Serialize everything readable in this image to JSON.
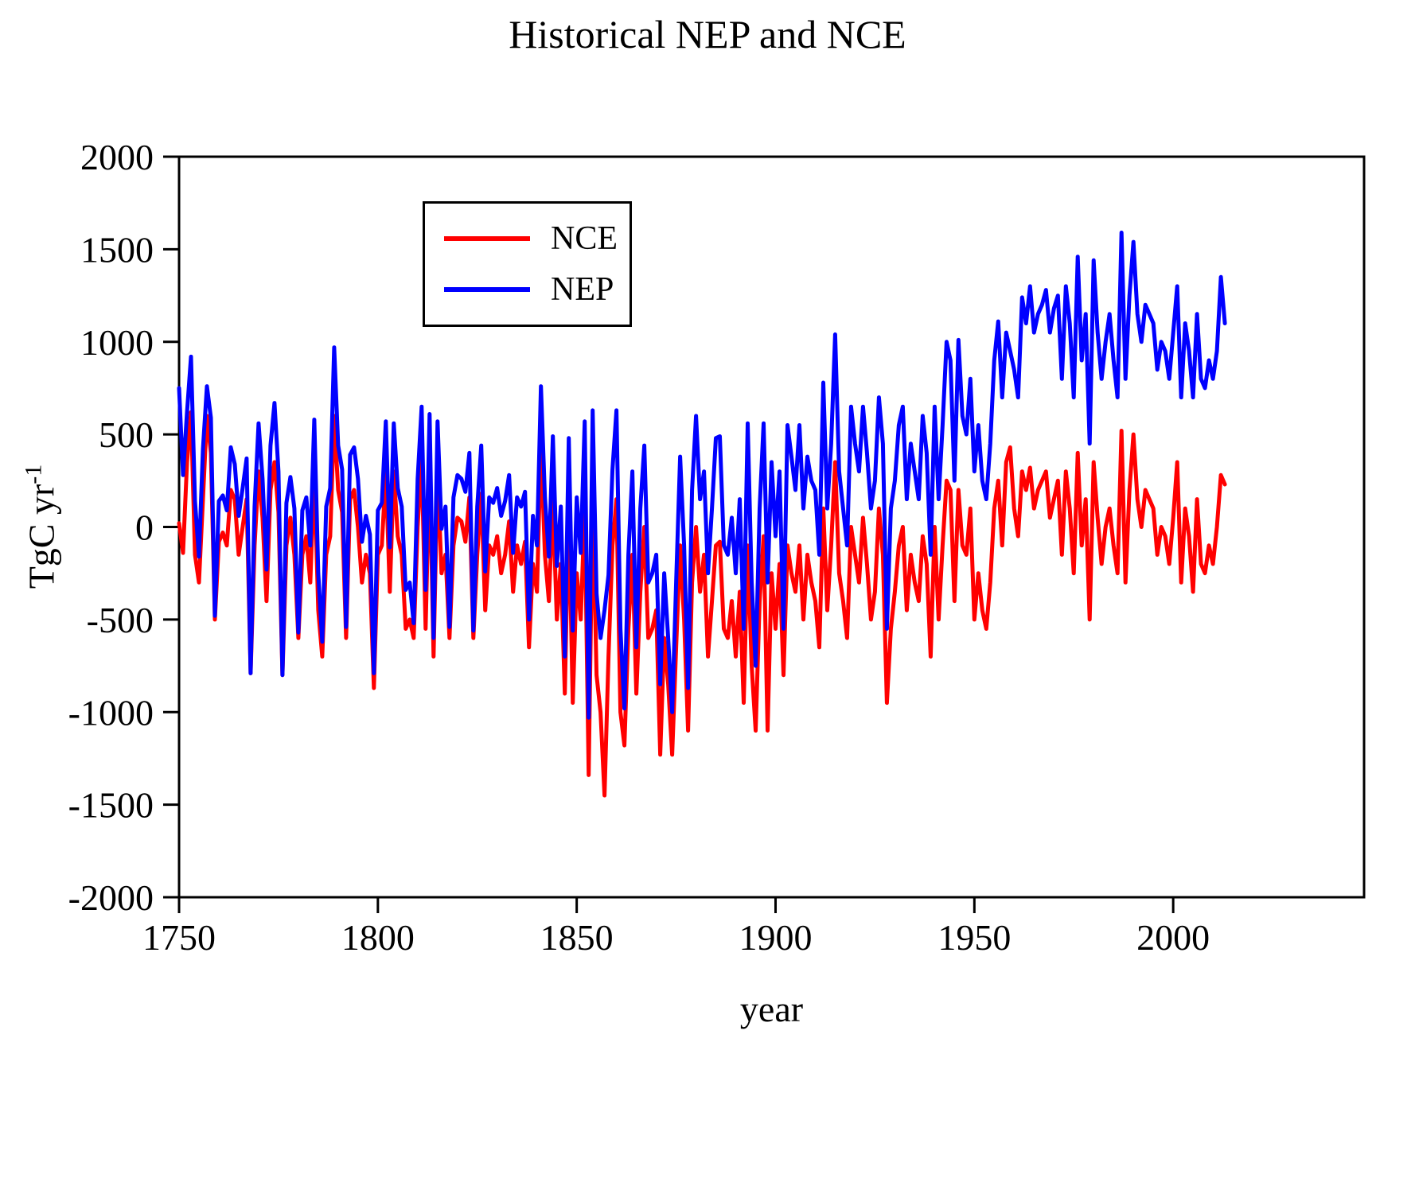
{
  "title": "Historical NEP and NCE",
  "labels": {
    "xlabel": "year",
    "ylabel_main": "TgC yr",
    "ylabel_sup": "-1"
  },
  "chart_data": {
    "type": "line",
    "title": "Historical NEP and NCE",
    "xlabel": "year",
    "ylabel": "TgC yr^-1",
    "xlim": [
      1750,
      2048
    ],
    "ylim": [
      -2000,
      2000
    ],
    "x_ticks": [
      1750,
      1800,
      1850,
      1900,
      1950,
      2000
    ],
    "y_ticks": [
      -2000,
      -1500,
      -1000,
      -500,
      0,
      500,
      1000,
      1500,
      2000
    ],
    "x_start": 1750,
    "x_end": 2013,
    "legend_position": "upper-left-inside",
    "grid": false,
    "series": [
      {
        "name": "NCE",
        "color": "#ff0000",
        "values": [
          20,
          -140,
          350,
          620,
          -150,
          -300,
          150,
          600,
          400,
          -500,
          -80,
          -30,
          -100,
          200,
          150,
          -150,
          0,
          150,
          -790,
          -100,
          300,
          50,
          -400,
          200,
          350,
          80,
          -800,
          -100,
          50,
          -150,
          -600,
          -150,
          -50,
          -300,
          300,
          -450,
          -700,
          -150,
          -50,
          600,
          200,
          80,
          -600,
          150,
          200,
          0,
          -300,
          -150,
          -250,
          -870,
          -150,
          -100,
          300,
          -350,
          300,
          -50,
          -150,
          -550,
          -500,
          -600,
          0,
          380,
          -550,
          350,
          -700,
          300,
          -250,
          -150,
          -600,
          -100,
          50,
          30,
          -80,
          160,
          -600,
          -150,
          180,
          -450,
          -100,
          -150,
          -50,
          -250,
          -150,
          30,
          -350,
          -100,
          -200,
          -80,
          -650,
          -200,
          -350,
          450,
          -150,
          -400,
          150,
          -500,
          -200,
          -900,
          100,
          -950,
          -250,
          -500,
          100,
          -1340,
          150,
          -800,
          -1000,
          -1450,
          -700,
          -100,
          150,
          -1000,
          -1180,
          -550,
          -150,
          -900,
          -350,
          0,
          -600,
          -550,
          -450,
          -1230,
          -600,
          -850,
          -1230,
          -650,
          -100,
          -500,
          -1100,
          -300,
          0,
          -350,
          -150,
          -700,
          -400,
          -100,
          -80,
          -550,
          -600,
          -400,
          -700,
          -350,
          -950,
          -100,
          -750,
          -1100,
          -400,
          -50,
          -1100,
          -250,
          -550,
          -200,
          -800,
          -100,
          -250,
          -350,
          -100,
          -500,
          -150,
          -300,
          -400,
          -650,
          100,
          -450,
          -100,
          350,
          -250,
          -400,
          -600,
          0,
          -150,
          -300,
          50,
          -200,
          -500,
          -350,
          100,
          -150,
          -950,
          -550,
          -350,
          -100,
          0,
          -450,
          -150,
          -300,
          -400,
          -50,
          -200,
          -700,
          0,
          -500,
          -100,
          250,
          200,
          -400,
          200,
          -100,
          -150,
          100,
          -500,
          -250,
          -450,
          -550,
          -300,
          100,
          250,
          -100,
          350,
          430,
          100,
          -50,
          300,
          200,
          320,
          100,
          200,
          250,
          300,
          50,
          150,
          250,
          -150,
          300,
          100,
          -250,
          400,
          -100,
          150,
          -500,
          350,
          50,
          -200,
          0,
          100,
          -100,
          -250,
          520,
          -300,
          200,
          500,
          150,
          0,
          200,
          150,
          100,
          -150,
          0,
          -50,
          -200,
          50,
          350,
          -300,
          100,
          -50,
          -350,
          150,
          -200,
          -250,
          -100,
          -200,
          0,
          280,
          230
        ]
      },
      {
        "name": "NEP",
        "color": "#0000ff",
        "values": [
          750,
          280,
          620,
          920,
          140,
          -160,
          420,
          760,
          590,
          -480,
          140,
          170,
          90,
          430,
          340,
          60,
          210,
          370,
          -790,
          110,
          560,
          260,
          -230,
          440,
          670,
          300,
          -800,
          130,
          270,
          100,
          -570,
          90,
          160,
          -100,
          580,
          -250,
          -620,
          110,
          210,
          970,
          440,
          310,
          -540,
          390,
          430,
          260,
          -80,
          60,
          -40,
          -790,
          90,
          130,
          570,
          -110,
          560,
          210,
          110,
          -340,
          -300,
          -520,
          260,
          650,
          -340,
          610,
          -600,
          570,
          -10,
          110,
          -540,
          160,
          280,
          260,
          190,
          400,
          -560,
          110,
          440,
          -240,
          160,
          130,
          210,
          60,
          140,
          280,
          -140,
          160,
          110,
          190,
          -500,
          60,
          -100,
          760,
          160,
          -160,
          490,
          -210,
          110,
          -700,
          480,
          -560,
          160,
          -140,
          570,
          -1030,
          630,
          -360,
          -600,
          -450,
          -260,
          310,
          630,
          -550,
          -980,
          -150,
          300,
          -650,
          100,
          440,
          -300,
          -250,
          -150,
          -850,
          -250,
          -600,
          -1000,
          -300,
          380,
          -100,
          -870,
          200,
          600,
          150,
          300,
          -250,
          100,
          480,
          490,
          -100,
          -150,
          50,
          -250,
          150,
          -550,
          560,
          -300,
          -750,
          100,
          560,
          -300,
          350,
          -50,
          300,
          -550,
          550,
          380,
          200,
          550,
          100,
          380,
          250,
          200,
          -150,
          780,
          100,
          450,
          1040,
          300,
          100,
          -100,
          650,
          450,
          300,
          650,
          400,
          100,
          250,
          700,
          450,
          -550,
          100,
          250,
          550,
          650,
          150,
          450,
          300,
          150,
          600,
          400,
          -150,
          650,
          150,
          550,
          1000,
          900,
          250,
          1010,
          600,
          500,
          800,
          300,
          550,
          250,
          150,
          450,
          900,
          1110,
          700,
          1050,
          950,
          850,
          700,
          1240,
          1100,
          1300,
          1050,
          1150,
          1200,
          1280,
          1050,
          1180,
          1250,
          800,
          1300,
          1100,
          700,
          1460,
          900,
          1150,
          450,
          1440,
          1050,
          800,
          1000,
          1150,
          900,
          700,
          1590,
          800,
          1250,
          1540,
          1150,
          1000,
          1200,
          1150,
          1100,
          850,
          1000,
          950,
          800,
          1050,
          1300,
          700,
          1100,
          950,
          700,
          1150,
          800,
          750,
          900,
          800,
          950,
          1350,
          1100
        ]
      }
    ]
  }
}
